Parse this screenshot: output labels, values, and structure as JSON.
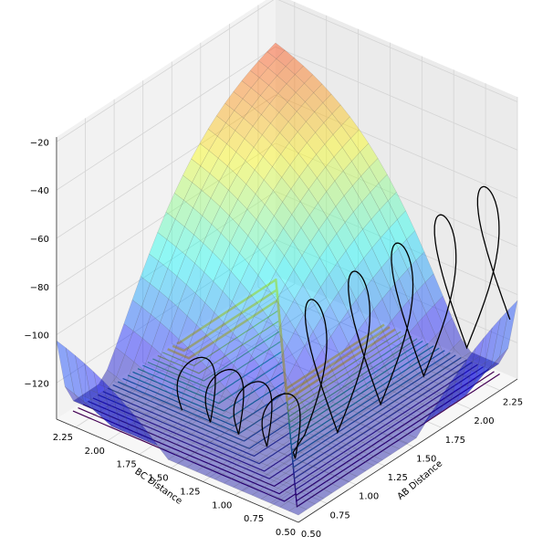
{
  "chart_data": {
    "type": "surface3d",
    "title": "",
    "xlabel": "AB Distance",
    "ylabel": "BC Distance",
    "zlabel": "",
    "x_ticks": [
      "0.50",
      "0.75",
      "1.00",
      "1.25",
      "1.50",
      "1.75",
      "2.00",
      "2.25"
    ],
    "y_ticks": [
      "0.50",
      "0.75",
      "1.00",
      "1.25",
      "1.50",
      "1.75",
      "2.00",
      "2.25"
    ],
    "z_ticks": [
      "−120",
      "−100",
      "−80",
      "−60",
      "−40",
      "−20"
    ],
    "xlim": [
      0.5,
      2.4
    ],
    "ylim": [
      0.5,
      2.4
    ],
    "zlim": [
      -135,
      -18
    ],
    "surface_colormap": "jet",
    "contour_colormap": "viridis",
    "trajectory_color": "#000000",
    "pane_color": "#f2f2f2",
    "grid": true
  }
}
